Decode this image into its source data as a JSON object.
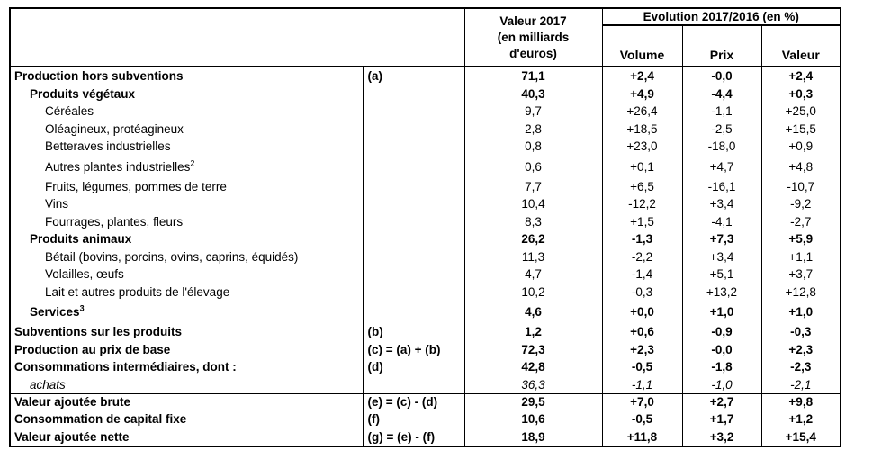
{
  "page": {
    "background": "#ffffff",
    "border_color": "#000000",
    "text_color": "#000000"
  },
  "table": {
    "header": {
      "value_col": "Valeur 2017\n(en milliards\nd'euros)",
      "evolution": "Evolution 2017/2016 (en %)",
      "volume": "Volume",
      "prix": "Prix",
      "valeur": "Valeur"
    },
    "rows": [
      {
        "label": "Production hors subventions",
        "sup": "",
        "code": "(a)",
        "indent": 0,
        "style": "bold",
        "valeur2017": "71,1",
        "volume": "+2,4",
        "prix": "-0,0",
        "valeur": "+2,4",
        "top_border": false,
        "tall": false,
        "short": false
      },
      {
        "label": "Produits végétaux",
        "sup": "",
        "code": "",
        "indent": 1,
        "style": "bold",
        "valeur2017": "40,3",
        "volume": "+4,9",
        "prix": "-4,4",
        "valeur": "+0,3",
        "top_border": false,
        "tall": false,
        "short": false
      },
      {
        "label": "Céréales",
        "sup": "",
        "code": "",
        "indent": 2,
        "style": "normal",
        "valeur2017": "9,7",
        "volume": "+26,4",
        "prix": "-1,1",
        "valeur": "+25,0",
        "top_border": false,
        "tall": false,
        "short": false
      },
      {
        "label": "Oléagineux, protéagineux",
        "sup": "",
        "code": "",
        "indent": 2,
        "style": "normal",
        "valeur2017": "2,8",
        "volume": "+18,5",
        "prix": "-2,5",
        "valeur": "+15,5",
        "top_border": false,
        "tall": false,
        "short": false
      },
      {
        "label": "Betteraves industrielles",
        "sup": "",
        "code": "",
        "indent": 2,
        "style": "normal",
        "valeur2017": "0,8",
        "volume": "+23,0",
        "prix": "-18,0",
        "valeur": "+0,9",
        "top_border": false,
        "tall": false,
        "short": false
      },
      {
        "label": "Autres plantes industrielles",
        "sup": "2",
        "code": "",
        "indent": 2,
        "style": "normal",
        "valeur2017": "0,6",
        "volume": "+0,1",
        "prix": "+4,7",
        "valeur": "+4,8",
        "top_border": false,
        "tall": true,
        "short": false
      },
      {
        "label": "Fruits, légumes, pommes de terre",
        "sup": "",
        "code": "",
        "indent": 2,
        "style": "normal",
        "valeur2017": "7,7",
        "volume": "+6,5",
        "prix": "-16,1",
        "valeur": "-10,7",
        "top_border": false,
        "tall": false,
        "short": false
      },
      {
        "label": "Vins",
        "sup": "",
        "code": "",
        "indent": 2,
        "style": "normal",
        "valeur2017": "10,4",
        "volume": "-12,2",
        "prix": "+3,4",
        "valeur": "-9,2",
        "top_border": false,
        "tall": false,
        "short": false
      },
      {
        "label": "Fourrages, plantes, fleurs",
        "sup": "",
        "code": "",
        "indent": 2,
        "style": "normal",
        "valeur2017": "8,3",
        "volume": "+1,5",
        "prix": "-4,1",
        "valeur": "-2,7",
        "top_border": false,
        "tall": false,
        "short": false
      },
      {
        "label": "Produits animaux",
        "sup": "",
        "code": "",
        "indent": 1,
        "style": "bold",
        "valeur2017": "26,2",
        "volume": "-1,3",
        "prix": "+7,3",
        "valeur": "+5,9",
        "top_border": false,
        "tall": false,
        "short": false
      },
      {
        "label": "Bétail (bovins, porcins, ovins, caprins, équidés)",
        "sup": "",
        "code": "",
        "indent": 2,
        "style": "normal",
        "valeur2017": "11,3",
        "volume": "-2,2",
        "prix": "+3,4",
        "valeur": "+1,1",
        "top_border": false,
        "tall": false,
        "short": false
      },
      {
        "label": "Volailles, œufs",
        "sup": "",
        "code": "",
        "indent": 2,
        "style": "normal",
        "valeur2017": "4,7",
        "volume": "-1,4",
        "prix": "+5,1",
        "valeur": "+3,7",
        "top_border": false,
        "tall": false,
        "short": false
      },
      {
        "label": "Lait et autres produits de l'élevage",
        "sup": "",
        "code": "",
        "indent": 2,
        "style": "normal",
        "valeur2017": "10,2",
        "volume": "-0,3",
        "prix": "+13,2",
        "valeur": "+12,8",
        "top_border": false,
        "tall": false,
        "short": false
      },
      {
        "label": "Services",
        "sup": "3",
        "code": "",
        "indent": 1,
        "style": "bold",
        "valeur2017": "4,6",
        "volume": "+0,0",
        "prix": "+1,0",
        "valeur": "+1,0",
        "top_border": false,
        "tall": true,
        "short": false
      },
      {
        "label": "Subventions sur les produits",
        "sup": "",
        "code": "(b)",
        "indent": 0,
        "style": "bold",
        "valeur2017": "1,2",
        "volume": "+0,6",
        "prix": "-0,9",
        "valeur": "-0,3",
        "top_border": false,
        "tall": false,
        "short": false
      },
      {
        "label": "Production au prix de base",
        "sup": "",
        "code": "(c) = (a) + (b)",
        "indent": 0,
        "style": "bold",
        "valeur2017": "72,3",
        "volume": "+2,3",
        "prix": "-0,0",
        "valeur": "+2,3",
        "top_border": false,
        "tall": false,
        "short": false
      },
      {
        "label": "Consommations intermédiaires, dont :",
        "sup": "",
        "code": "(d)",
        "indent": 0,
        "style": "bold",
        "valeur2017": "42,8",
        "volume": "-0,5",
        "prix": "-1,8",
        "valeur": "-2,3",
        "top_border": false,
        "tall": false,
        "short": false
      },
      {
        "label": "achats",
        "sup": "",
        "code": "",
        "indent": 1,
        "style": "italic",
        "valeur2017": "36,3",
        "volume": "-1,1",
        "prix": "-1,0",
        "valeur": "-2,1",
        "top_border": false,
        "tall": false,
        "short": false
      },
      {
        "label": "Valeur ajoutée brute",
        "sup": "",
        "code": "(e) = (c) - (d)",
        "indent": 0,
        "style": "bold",
        "valeur2017": "29,5",
        "volume": "+7,0",
        "prix": "+2,7",
        "valeur": "+9,8",
        "top_border": true,
        "tall": false,
        "short": true
      },
      {
        "label": "Consommation de capital fixe",
        "sup": "",
        "code": "(f)",
        "indent": 0,
        "style": "bold",
        "valeur2017": "10,6",
        "volume": "-0,5",
        "prix": "+1,7",
        "valeur": "+1,2",
        "top_border": true,
        "tall": false,
        "short": false
      },
      {
        "label": "Valeur ajoutée nette",
        "sup": "",
        "code": "(g) = (e) - (f)",
        "indent": 0,
        "style": "bold",
        "valeur2017": "18,9",
        "volume": "+11,8",
        "prix": "+3,2",
        "valeur": "+15,4",
        "top_border": false,
        "tall": false,
        "short": false
      }
    ]
  },
  "chart_data": {
    "type": "table",
    "column_groups": [
      {
        "label": "Evolution 2017/2016 (en %)",
        "columns": [
          "Volume",
          "Prix",
          "Valeur"
        ]
      }
    ],
    "columns": [
      "",
      "Code",
      "Valeur 2017 (en milliards d'euros)",
      "Volume",
      "Prix",
      "Valeur"
    ],
    "rows": [
      [
        "Production hors subventions",
        "(a)",
        71.1,
        2.4,
        -0.0,
        2.4
      ],
      [
        "Produits végétaux",
        "",
        40.3,
        4.9,
        -4.4,
        0.3
      ],
      [
        "Céréales",
        "",
        9.7,
        26.4,
        -1.1,
        25.0
      ],
      [
        "Oléagineux, protéagineux",
        "",
        2.8,
        18.5,
        -2.5,
        15.5
      ],
      [
        "Betteraves industrielles",
        "",
        0.8,
        23.0,
        -18.0,
        0.9
      ],
      [
        "Autres plantes industrielles²",
        "",
        0.6,
        0.1,
        4.7,
        4.8
      ],
      [
        "Fruits, légumes, pommes de terre",
        "",
        7.7,
        6.5,
        -16.1,
        -10.7
      ],
      [
        "Vins",
        "",
        10.4,
        -12.2,
        3.4,
        -9.2
      ],
      [
        "Fourrages, plantes, fleurs",
        "",
        8.3,
        1.5,
        -4.1,
        -2.7
      ],
      [
        "Produits animaux",
        "",
        26.2,
        -1.3,
        7.3,
        5.9
      ],
      [
        "Bétail (bovins, porcins, ovins, caprins, équidés)",
        "",
        11.3,
        -2.2,
        3.4,
        1.1
      ],
      [
        "Volailles, œufs",
        "",
        4.7,
        -1.4,
        5.1,
        3.7
      ],
      [
        "Lait et autres produits de l'élevage",
        "",
        10.2,
        -0.3,
        13.2,
        12.8
      ],
      [
        "Services³",
        "",
        4.6,
        0.0,
        1.0,
        1.0
      ],
      [
        "Subventions sur les produits",
        "(b)",
        1.2,
        0.6,
        -0.9,
        -0.3
      ],
      [
        "Production au prix de base",
        "(c) = (a) + (b)",
        72.3,
        2.3,
        -0.0,
        2.3
      ],
      [
        "Consommations intermédiaires, dont :",
        "(d)",
        42.8,
        -0.5,
        -1.8,
        -2.3
      ],
      [
        "achats",
        "",
        36.3,
        -1.1,
        -1.0,
        -2.1
      ],
      [
        "Valeur ajoutée brute",
        "(e) = (c) - (d)",
        29.5,
        7.0,
        2.7,
        9.8
      ],
      [
        "Consommation de capital fixe",
        "(f)",
        10.6,
        -0.5,
        1.7,
        1.2
      ],
      [
        "Valeur ajoutée nette",
        "(g) = (e) - (f)",
        18.9,
        11.8,
        3.2,
        15.4
      ]
    ]
  }
}
